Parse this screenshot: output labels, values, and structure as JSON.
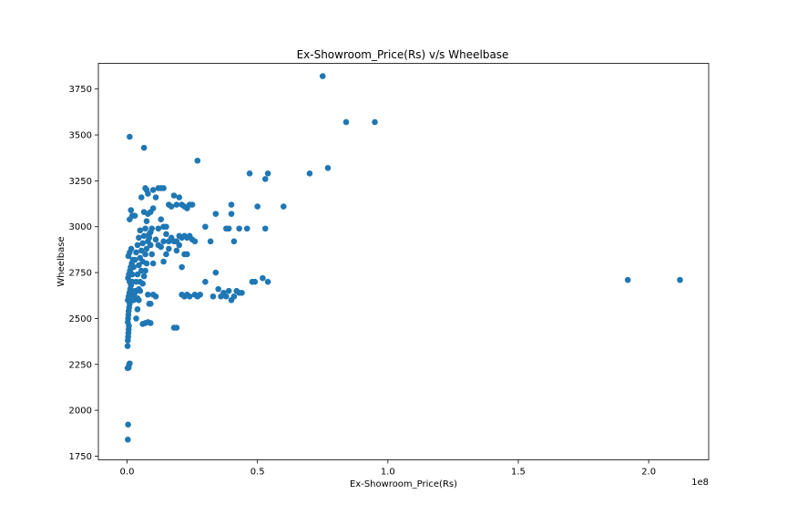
{
  "chart_data": {
    "type": "scatter",
    "title": "Ex-Showroom_Price(Rs) v/s Wheelbase",
    "xlabel": "Ex-Showroom_Price(Rs)",
    "ylabel": "Wheelbase",
    "x_offset_label": "1e8",
    "x_scale": 100000000,
    "xlim": [
      -0.11,
      2.23
    ],
    "ylim": [
      1730,
      3890
    ],
    "x_ticks": [
      0.0,
      0.5,
      1.0,
      1.5,
      2.0
    ],
    "x_tick_labels": [
      "0.0",
      "0.5",
      "1.0",
      "1.5",
      "2.0"
    ],
    "y_ticks": [
      1750,
      2000,
      2250,
      2500,
      2750,
      3000,
      3250,
      3500,
      3750
    ],
    "y_tick_labels": [
      "1750",
      "2000",
      "2250",
      "2500",
      "2750",
      "3000",
      "3250",
      "3500",
      "3750"
    ],
    "grid": false,
    "legend": "none",
    "marker_color": "#1f77b4",
    "points": [
      [
        0.003,
        1840
      ],
      [
        0.004,
        1922
      ],
      [
        0.002,
        2230
      ],
      [
        0.006,
        2232
      ],
      [
        0.008,
        2250
      ],
      [
        0.01,
        2255
      ],
      [
        0.002,
        2350
      ],
      [
        0.003,
        2380
      ],
      [
        0.004,
        2400
      ],
      [
        0.005,
        2420
      ],
      [
        0.006,
        2440
      ],
      [
        0.007,
        2460
      ],
      [
        0.003,
        2480
      ],
      [
        0.004,
        2500
      ],
      [
        0.005,
        2520
      ],
      [
        0.006,
        2540
      ],
      [
        0.008,
        2560
      ],
      [
        0.01,
        2580
      ],
      [
        0.003,
        2600
      ],
      [
        0.006,
        2620
      ],
      [
        0.009,
        2640
      ],
      [
        0.012,
        2660
      ],
      [
        0.015,
        2680
      ],
      [
        0.02,
        2700
      ],
      [
        0.004,
        2720
      ],
      [
        0.007,
        2740
      ],
      [
        0.011,
        2760
      ],
      [
        0.014,
        2780
      ],
      [
        0.018,
        2800
      ],
      [
        0.022,
        2820
      ],
      [
        0.005,
        2840
      ],
      [
        0.01,
        2860
      ],
      [
        0.016,
        2880
      ],
      [
        0.024,
        2620
      ],
      [
        0.03,
        2650
      ],
      [
        0.035,
        2700
      ],
      [
        0.04,
        2740
      ],
      [
        0.045,
        2790
      ],
      [
        0.05,
        2830
      ],
      [
        0.055,
        2870
      ],
      [
        0.06,
        2910
      ],
      [
        0.065,
        2950
      ],
      [
        0.07,
        2990
      ],
      [
        0.075,
        3030
      ],
      [
        0.08,
        3070
      ],
      [
        0.085,
        2960
      ],
      [
        0.09,
        2900
      ],
      [
        0.095,
        2850
      ],
      [
        0.1,
        2800
      ],
      [
        0.035,
        2500
      ],
      [
        0.04,
        2550
      ],
      [
        0.045,
        2600
      ],
      [
        0.05,
        2650
      ],
      [
        0.06,
        2690
      ],
      [
        0.065,
        2730
      ],
      [
        0.07,
        2760
      ],
      [
        0.075,
        2800
      ],
      [
        0.08,
        2630
      ],
      [
        0.085,
        2580
      ],
      [
        0.09,
        2580
      ],
      [
        0.06,
        2470
      ],
      [
        0.07,
        2475
      ],
      [
        0.08,
        2480
      ],
      [
        0.09,
        2475
      ],
      [
        0.1,
        2630
      ],
      [
        0.11,
        2620
      ],
      [
        0.01,
        3040
      ],
      [
        0.015,
        3090
      ],
      [
        0.02,
        3060
      ],
      [
        0.03,
        3060
      ],
      [
        0.055,
        3160
      ],
      [
        0.065,
        3080
      ],
      [
        0.07,
        3210
      ],
      [
        0.075,
        3200
      ],
      [
        0.08,
        3180
      ],
      [
        0.09,
        3080
      ],
      [
        0.1,
        3200
      ],
      [
        0.11,
        3160
      ],
      [
        0.12,
        3210
      ],
      [
        0.13,
        3210
      ],
      [
        0.14,
        3210
      ],
      [
        0.1,
        3100
      ],
      [
        0.12,
        2990
      ],
      [
        0.13,
        3040
      ],
      [
        0.14,
        3000
      ],
      [
        0.15,
        3000
      ],
      [
        0.16,
        3120
      ],
      [
        0.17,
        3110
      ],
      [
        0.18,
        3170
      ],
      [
        0.19,
        3120
      ],
      [
        0.2,
        3160
      ],
      [
        0.21,
        3120
      ],
      [
        0.22,
        3110
      ],
      [
        0.23,
        3100
      ],
      [
        0.24,
        3120
      ],
      [
        0.25,
        3120
      ],
      [
        0.11,
        2930
      ],
      [
        0.12,
        2900
      ],
      [
        0.13,
        2890
      ],
      [
        0.14,
        2920
      ],
      [
        0.15,
        2960
      ],
      [
        0.16,
        2920
      ],
      [
        0.17,
        2940
      ],
      [
        0.18,
        2920
      ],
      [
        0.19,
        2920
      ],
      [
        0.2,
        2950
      ],
      [
        0.21,
        2940
      ],
      [
        0.22,
        2950
      ],
      [
        0.23,
        2940
      ],
      [
        0.24,
        2950
      ],
      [
        0.25,
        2930
      ],
      [
        0.26,
        2920
      ],
      [
        0.14,
        2810
      ],
      [
        0.15,
        2850
      ],
      [
        0.16,
        2880
      ],
      [
        0.19,
        2870
      ],
      [
        0.2,
        2900
      ],
      [
        0.21,
        2780
      ],
      [
        0.22,
        2850
      ],
      [
        0.23,
        2850
      ],
      [
        0.18,
        2450
      ],
      [
        0.19,
        2450
      ],
      [
        0.21,
        2630
      ],
      [
        0.22,
        2620
      ],
      [
        0.23,
        2630
      ],
      [
        0.24,
        2620
      ],
      [
        0.26,
        2630
      ],
      [
        0.27,
        2620
      ],
      [
        0.28,
        2630
      ],
      [
        0.3,
        2700
      ],
      [
        0.32,
        2920
      ],
      [
        0.33,
        2620
      ],
      [
        0.34,
        2750
      ],
      [
        0.35,
        2660
      ],
      [
        0.36,
        2620
      ],
      [
        0.37,
        2640
      ],
      [
        0.38,
        2620
      ],
      [
        0.39,
        2650
      ],
      [
        0.4,
        2600
      ],
      [
        0.41,
        2620
      ],
      [
        0.42,
        2650
      ],
      [
        0.43,
        2640
      ],
      [
        0.44,
        2640
      ],
      [
        0.38,
        2990
      ],
      [
        0.39,
        2990
      ],
      [
        0.4,
        3070
      ],
      [
        0.4,
        3120
      ],
      [
        0.41,
        2920
      ],
      [
        0.43,
        2990
      ],
      [
        0.46,
        2990
      ],
      [
        0.48,
        2700
      ],
      [
        0.49,
        2700
      ],
      [
        0.5,
        3110
      ],
      [
        0.52,
        2720
      ],
      [
        0.53,
        2990
      ],
      [
        0.54,
        2700
      ],
      [
        0.3,
        3000
      ],
      [
        0.34,
        3070
      ],
      [
        0.27,
        3360
      ],
      [
        0.47,
        3290
      ],
      [
        0.53,
        3260
      ],
      [
        0.54,
        3290
      ],
      [
        0.6,
        3110
      ],
      [
        0.7,
        3290
      ],
      [
        0.75,
        3820
      ],
      [
        0.77,
        3320
      ],
      [
        0.84,
        3570
      ],
      [
        0.95,
        3570
      ],
      [
        0.01,
        3490
      ],
      [
        0.065,
        3430
      ],
      [
        0.01,
        2700
      ],
      [
        0.02,
        2740
      ],
      [
        0.025,
        2780
      ],
      [
        0.03,
        2820
      ],
      [
        0.035,
        2860
      ],
      [
        0.04,
        2900
      ],
      [
        0.045,
        2940
      ],
      [
        0.05,
        2980
      ],
      [
        0.015,
        2620
      ],
      [
        0.025,
        2600
      ],
      [
        0.03,
        2640
      ],
      [
        0.04,
        2610
      ],
      [
        0.045,
        2660
      ],
      [
        0.05,
        2700
      ],
      [
        0.055,
        2760
      ],
      [
        0.06,
        2810
      ],
      [
        0.07,
        2850
      ],
      [
        0.075,
        2880
      ],
      [
        0.08,
        2920
      ],
      [
        0.085,
        2940
      ],
      [
        0.09,
        2970
      ],
      [
        0.095,
        2990
      ],
      [
        1.92,
        2710
      ],
      [
        2.12,
        2710
      ]
    ]
  }
}
